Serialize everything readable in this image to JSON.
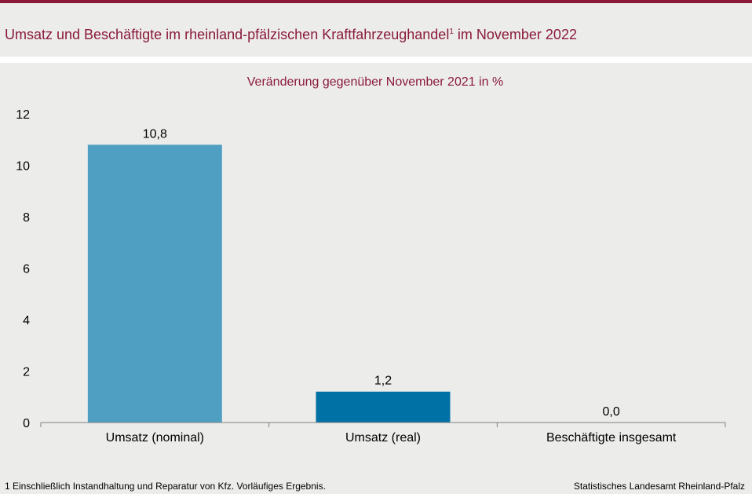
{
  "header": {
    "title_main": "Umsatz und Beschäftigte im rheinland-pfälzischen Kraftfahrzeughandel",
    "title_sup": "1",
    "title_tail": " im November 2022"
  },
  "chart_data": {
    "type": "bar",
    "subtitle": "Veränderung gegenüber November 2021 in %",
    "categories": [
      "Umsatz (nominal)",
      "Umsatz (real)",
      "Beschäftigte insgesamt"
    ],
    "values": [
      10.8,
      1.2,
      0.0
    ],
    "value_labels": [
      "10,8",
      "1,2",
      "0,0"
    ],
    "bar_colors": [
      "#4f9fc2",
      "#0071a4",
      "#0071a4"
    ],
    "ylim": [
      0,
      12
    ],
    "yticks": [
      0,
      2,
      4,
      6,
      8,
      10,
      12
    ],
    "ytick_labels": [
      "0",
      "2",
      "4",
      "6",
      "8",
      "10",
      "12"
    ],
    "grid": false,
    "legend": "none"
  },
  "footer": {
    "footnote": "1 Einschließlich Instandhaltung und Reparatur von Kfz. Vorläufiges Ergebnis.",
    "source": "Statistisches Landesamt Rheinland-Pfalz"
  },
  "colors": {
    "accent": "#8b1a3a",
    "background": "#ececeb"
  }
}
